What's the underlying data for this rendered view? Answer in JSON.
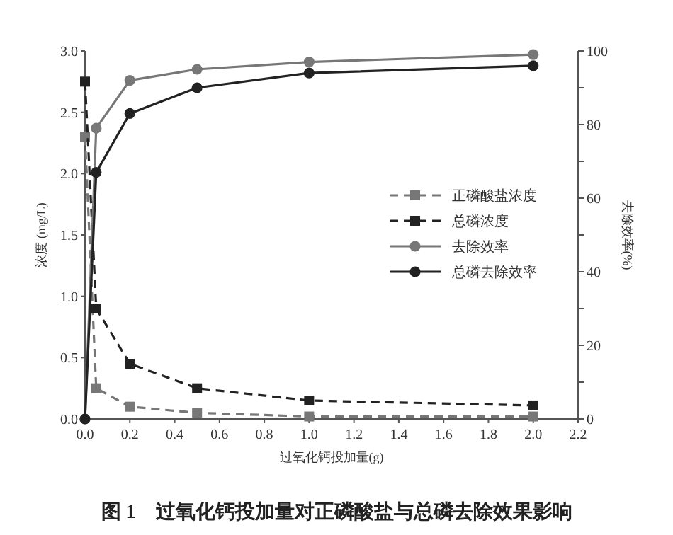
{
  "chart_data": {
    "type": "line",
    "title": "图 1　过氧化钙投加量对正磷酸盐与总磷去除效果影响",
    "xlabel": "过氧化钙投加量(g)",
    "ylabel": "浓度 (mg/L)",
    "y2label": "去除效率(%)",
    "xlim": [
      0,
      2.2
    ],
    "xticks": [
      {
        "value": 0,
        "label": "0.0"
      },
      0.2,
      0.4,
      0.6,
      0.8,
      {
        "value": 1,
        "label": "1.0"
      },
      1.2,
      1.4,
      1.6,
      1.8,
      {
        "value": 2,
        "label": "2.0"
      },
      2.2
    ],
    "ylim": [
      0,
      3
    ],
    "yticks": [
      {
        "value": 0,
        "label": "0.0"
      },
      0.5,
      {
        "value": 1,
        "label": "1.0"
      },
      1.5,
      {
        "value": 2,
        "label": "2.0"
      },
      2.5,
      {
        "value": 3,
        "label": "3.0"
      }
    ],
    "y2lim": [
      0,
      100
    ],
    "y2ticks": [
      0,
      {
        "value": 10,
        "label": null
      },
      20,
      {
        "value": 30,
        "label": null
      },
      40,
      {
        "value": 50,
        "label": null
      },
      60,
      {
        "value": 70,
        "label": null
      },
      80,
      {
        "value": 90,
        "label": null
      },
      100
    ],
    "x": [
      0,
      0.05,
      0.2,
      0.5,
      1.0,
      2.0
    ],
    "series": [
      {
        "name": "正磷酸盐浓度",
        "color": "#777777",
        "values": [
          2.3,
          0.25,
          0.1,
          0.05,
          0.02,
          0.02
        ],
        "line_style": "dashed",
        "marker": "square"
      },
      {
        "name": "总磷浓度",
        "color": "#222222",
        "values": [
          2.75,
          0.9,
          0.45,
          0.25,
          0.15,
          0.11
        ],
        "line_style": "dashed",
        "marker": "square"
      },
      {
        "name": "去除效率",
        "color": "#777777",
        "values": [
          0,
          79,
          92,
          95,
          97,
          99
        ],
        "axis": "y2",
        "line_style": "solid",
        "marker": "circle"
      },
      {
        "name": "总磷去除效率",
        "color": "#222222",
        "values": [
          0,
          67,
          83,
          90,
          94,
          96
        ],
        "axis": "y2",
        "line_style": "solid",
        "marker": "circle"
      }
    ],
    "legend": "center right",
    "grid": false
  }
}
